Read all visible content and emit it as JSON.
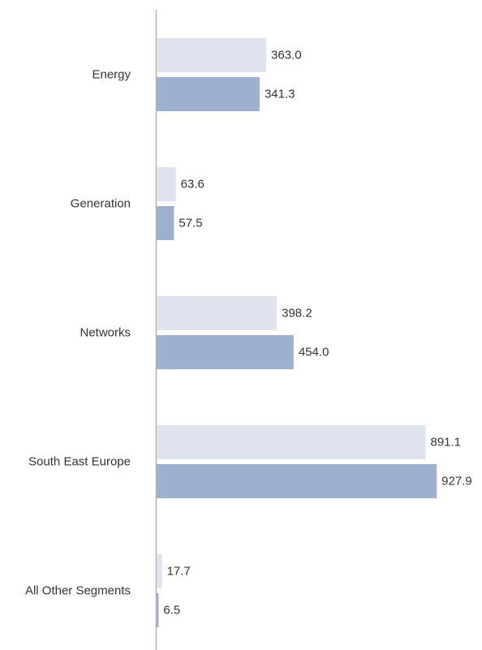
{
  "chart_data": {
    "type": "bar",
    "orientation": "horizontal",
    "categories": [
      "Energy",
      "Generation",
      "Networks",
      "South East Europe",
      "All Other Segments"
    ],
    "series": [
      {
        "values": [
          363.0,
          63.6,
          398.2,
          891.1,
          17.7
        ],
        "color": "#dfe3ee"
      },
      {
        "values": [
          341.3,
          57.5,
          454.0,
          927.9,
          6.5
        ],
        "color": "#9db0cd"
      }
    ],
    "value_labels": [
      [
        "363.0",
        "63.6",
        "398.2",
        "891.1",
        "17.7"
      ],
      [
        "341.3",
        "57.5",
        "454.0",
        "927.9",
        "6.5"
      ]
    ],
    "title": "",
    "xlabel": "",
    "ylabel": "",
    "grid": false,
    "legend": "none",
    "axis_color": "#b3b3b3"
  }
}
